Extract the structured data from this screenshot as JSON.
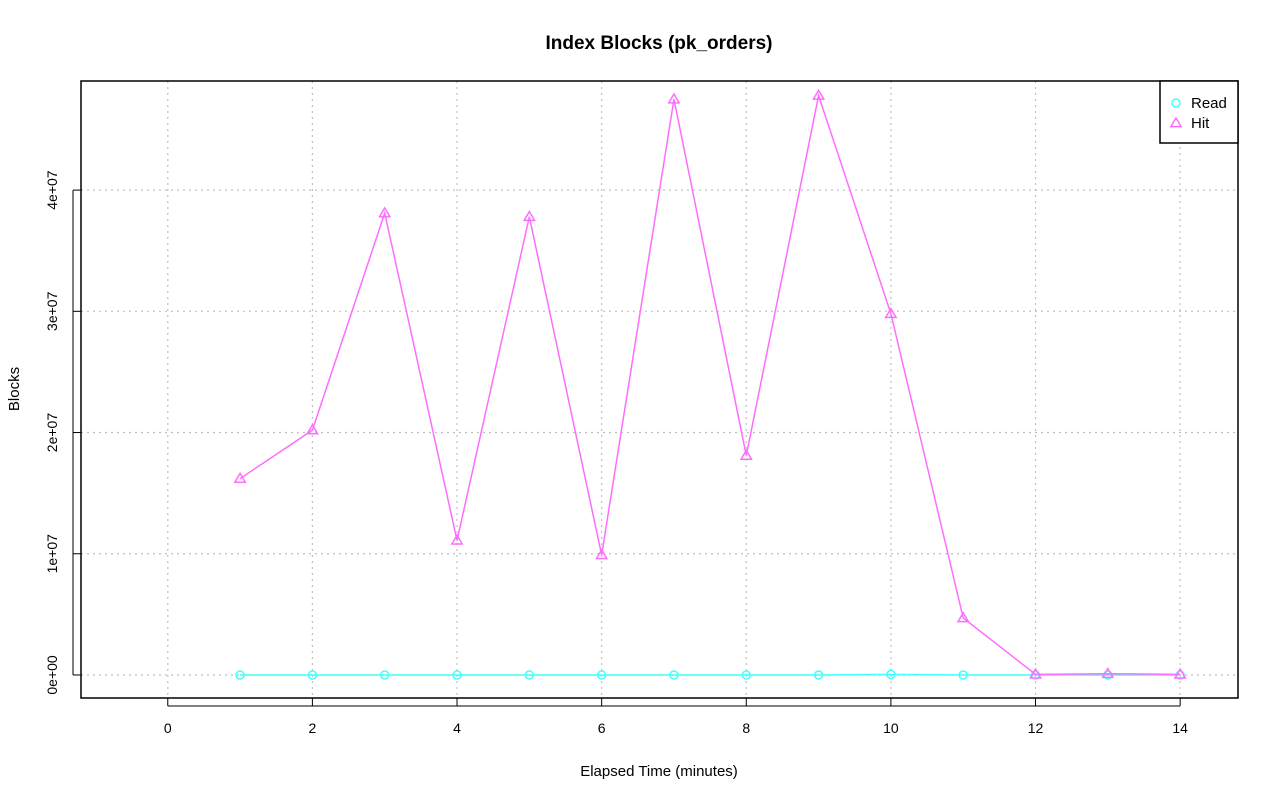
{
  "chart_data": {
    "type": "line",
    "title": "Index Blocks (pk_orders)",
    "xlabel": "Elapsed Time (minutes)",
    "ylabel": "Blocks",
    "xlim": [
      -1.2,
      14.8
    ],
    "ylim": [
      -1900000,
      49000000
    ],
    "x_ticks": [
      0,
      2,
      4,
      6,
      8,
      10,
      12,
      14
    ],
    "x_tick_labels": [
      "0",
      "2",
      "4",
      "6",
      "8",
      "10",
      "12",
      "14"
    ],
    "y_ticks": [
      0,
      10000000,
      20000000,
      30000000,
      40000000
    ],
    "y_tick_labels": [
      "0e+00",
      "1e+07",
      "2e+07",
      "3e+07",
      "4e+07"
    ],
    "grid": true,
    "legend_position": "top-right",
    "x": [
      1,
      2,
      3,
      4,
      5,
      6,
      7,
      8,
      9,
      10,
      11,
      12,
      13,
      14
    ],
    "series": [
      {
        "name": "Read",
        "color": "#40ffff",
        "marker": "circle",
        "values": [
          0,
          0,
          0,
          0,
          0,
          0,
          0,
          0,
          0,
          50000,
          0,
          0,
          0,
          0
        ]
      },
      {
        "name": "Hit",
        "color": "#ff6dff",
        "marker": "triangle",
        "values": [
          16200000,
          20200000,
          38100000,
          11100000,
          37800000,
          9900000,
          47500000,
          18100000,
          47800000,
          29800000,
          4700000,
          50000,
          100000,
          50000
        ]
      }
    ]
  }
}
